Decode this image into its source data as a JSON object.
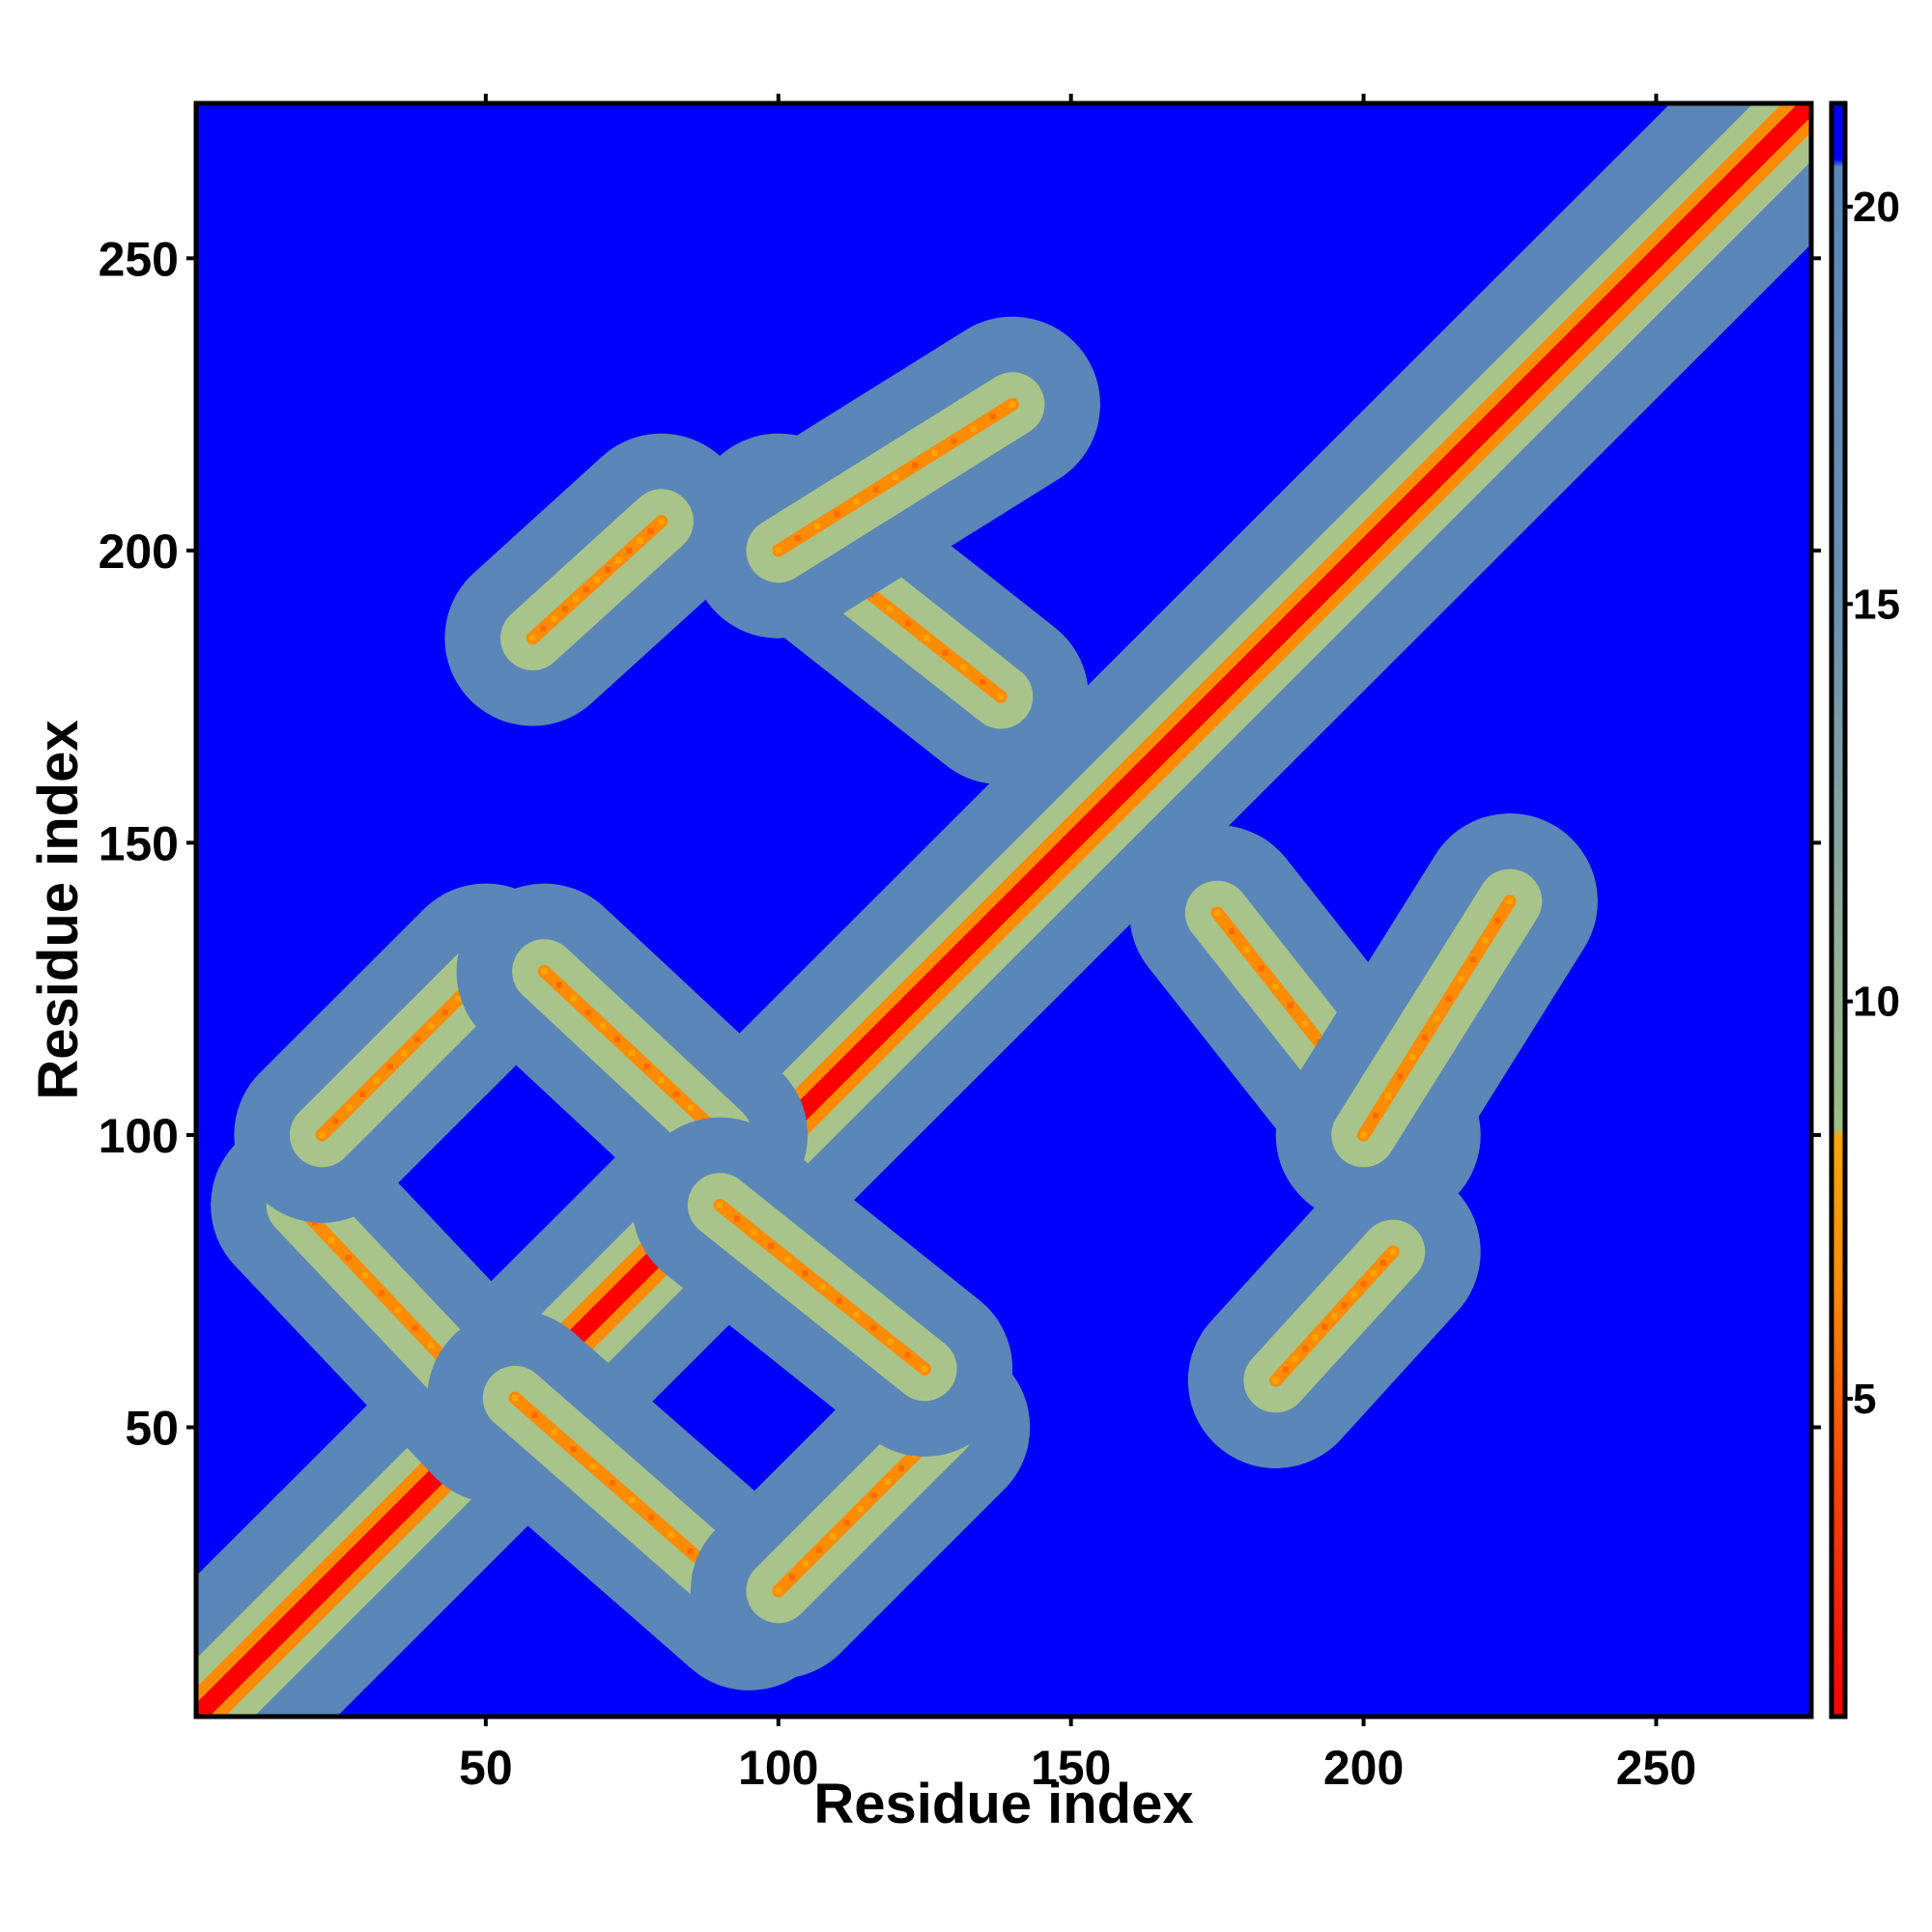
{
  "chart_data": {
    "type": "heatmap",
    "title": "",
    "xlabel": "Residue index",
    "ylabel": "Residue index",
    "n_residues": 276,
    "xlim": [
      1,
      276
    ],
    "ylim": [
      1,
      276
    ],
    "x_ticks": [
      50,
      100,
      150,
      200,
      250
    ],
    "y_ticks": [
      50,
      100,
      150,
      200,
      250
    ],
    "colorbar": {
      "range": [
        1,
        21.3
      ],
      "ticks": [
        5,
        10,
        15,
        20
      ],
      "stops": [
        {
          "value": 1,
          "color": "#ff0000"
        },
        {
          "value": 4,
          "color": "#ff4500"
        },
        {
          "value": 6.5,
          "color": "#ff8c00"
        },
        {
          "value": 8.3,
          "color": "#ffa500"
        },
        {
          "value": 8.4,
          "color": "#9bbf86"
        },
        {
          "value": 11,
          "color": "#8fae9a"
        },
        {
          "value": 15,
          "color": "#6a90b2"
        },
        {
          "value": 20.5,
          "color": "#5b86b8"
        },
        {
          "value": 20.6,
          "color": "#0000ff"
        }
      ]
    },
    "colors": {
      "background": "#0000ff",
      "contact_region": "#5b86b8",
      "near_contact": "#a8c48a",
      "close_contact": "#ff8c00",
      "diagonal": "#ff0000"
    },
    "contact_features": [
      {
        "kind": "diagonal",
        "from": 1,
        "to": 276
      },
      {
        "kind": "antiparallel",
        "i_range": [
          18,
          52
        ],
        "j_range": [
          52,
          88
        ],
        "note": "hairpin"
      },
      {
        "kind": "antiparallel",
        "i_range": [
          55,
          95
        ],
        "j_range": [
          20,
          55
        ]
      },
      {
        "kind": "parallel",
        "i_range": [
          22,
          50
        ],
        "j_range": [
          100,
          128
        ]
      },
      {
        "kind": "parallel",
        "i_range": [
          100,
          128
        ],
        "j_range": [
          22,
          50
        ]
      },
      {
        "kind": "antiparallel",
        "i_range": [
          60,
          90
        ],
        "j_range": [
          100,
          128
        ]
      },
      {
        "kind": "antiparallel",
        "i_range": [
          90,
          125
        ],
        "j_range": [
          60,
          88
        ]
      },
      {
        "kind": "antiparallel",
        "i_range": [
          175,
          205
        ],
        "j_range": [
          100,
          138
        ]
      },
      {
        "kind": "antiparallel",
        "i_range": [
          100,
          138
        ],
        "j_range": [
          175,
          205
        ]
      },
      {
        "kind": "parallel",
        "i_range": [
          58,
          80
        ],
        "j_range": [
          185,
          205
        ]
      },
      {
        "kind": "parallel",
        "i_range": [
          185,
          205
        ],
        "j_range": [
          58,
          80
        ]
      },
      {
        "kind": "parallel",
        "i_range": [
          100,
          140
        ],
        "j_range": [
          200,
          225
        ]
      },
      {
        "kind": "parallel",
        "i_range": [
          200,
          225
        ],
        "j_range": [
          100,
          140
        ]
      }
    ]
  }
}
